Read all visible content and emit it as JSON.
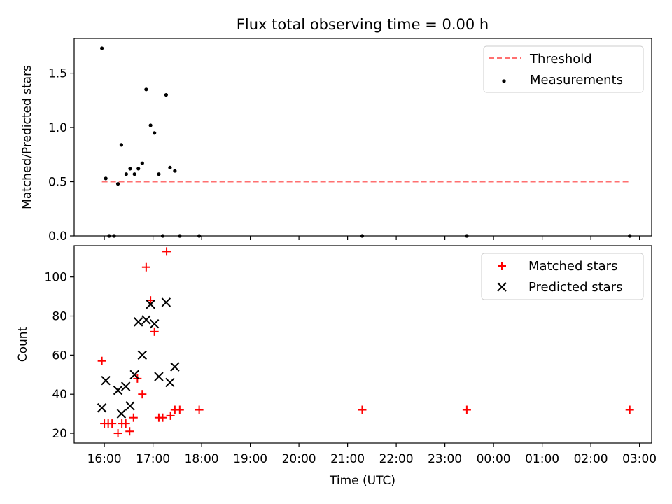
{
  "figure": {
    "title": "Flux total observing time = 0.00 h",
    "shared_xlabel": "Time (UTC)",
    "x_tick_labels": [
      "16:00",
      "17:00",
      "18:00",
      "19:00",
      "20:00",
      "21:00",
      "22:00",
      "23:00",
      "00:00",
      "01:00",
      "02:00",
      "03:00"
    ]
  },
  "chart_data": [
    {
      "type": "scatter",
      "title": "Flux total observing time = 0.00 h",
      "xlabel": "",
      "ylabel": "Matched/Predicted stars",
      "x_unit": "hours since 16:00 UTC",
      "xlim": [
        -0.62,
        11.25
      ],
      "ylim": [
        0,
        1.82
      ],
      "yticks": [
        0.0,
        0.5,
        1.0,
        1.5
      ],
      "ytick_labels": [
        "0.0",
        "0.5",
        "1.0",
        "1.5"
      ],
      "legend": {
        "location": "upper right",
        "entries": [
          "Threshold",
          "Measurements"
        ]
      },
      "grid": false,
      "threshold": {
        "name": "Threshold",
        "y": 0.5,
        "x_start": -0.05,
        "x_end": 10.8,
        "color": "#ff7070",
        "style": "dashed"
      },
      "series": [
        {
          "name": "Measurements",
          "marker": "dot",
          "color": "#000000",
          "points": [
            [
              -0.05,
              1.73
            ],
            [
              0.03,
              0.53
            ],
            [
              0.1,
              0.0
            ],
            [
              0.2,
              0.0
            ],
            [
              0.28,
              0.48
            ],
            [
              0.35,
              0.84
            ],
            [
              0.45,
              0.57
            ],
            [
              0.53,
              0.62
            ],
            [
              0.62,
              0.57
            ],
            [
              0.7,
              0.62
            ],
            [
              0.78,
              0.67
            ],
            [
              0.86,
              1.35
            ],
            [
              0.95,
              1.02
            ],
            [
              1.03,
              0.95
            ],
            [
              1.12,
              0.57
            ],
            [
              1.2,
              0.0
            ],
            [
              1.27,
              1.3
            ],
            [
              1.35,
              0.63
            ],
            [
              1.45,
              0.6
            ],
            [
              1.55,
              0.0
            ],
            [
              1.95,
              0.0
            ],
            [
              5.3,
              0.0
            ],
            [
              7.45,
              0.0
            ],
            [
              10.8,
              0.0
            ]
          ]
        }
      ]
    },
    {
      "type": "scatter",
      "xlabel": "Time (UTC)",
      "ylabel": "Count",
      "x_unit": "hours since 16:00 UTC",
      "xlim": [
        -0.62,
        11.25
      ],
      "ylim": [
        15,
        116
      ],
      "yticks": [
        20,
        40,
        60,
        80,
        100
      ],
      "ytick_labels": [
        "20",
        "40",
        "60",
        "80",
        "100"
      ],
      "legend": {
        "location": "upper right",
        "entries": [
          "Matched stars",
          "Predicted stars"
        ]
      },
      "grid": false,
      "series": [
        {
          "name": "Matched stars",
          "marker": "plus",
          "color": "#ff0000",
          "points": [
            [
              -0.05,
              57
            ],
            [
              0.0,
              25
            ],
            [
              0.08,
              25
            ],
            [
              0.16,
              25
            ],
            [
              0.28,
              20
            ],
            [
              0.36,
              25
            ],
            [
              0.44,
              25
            ],
            [
              0.52,
              21
            ],
            [
              0.6,
              28
            ],
            [
              0.68,
              48
            ],
            [
              0.78,
              40
            ],
            [
              0.86,
              105
            ],
            [
              0.95,
              88
            ],
            [
              1.03,
              72
            ],
            [
              1.12,
              28
            ],
            [
              1.2,
              28
            ],
            [
              1.28,
              113
            ],
            [
              1.36,
              29
            ],
            [
              1.45,
              32
            ],
            [
              1.55,
              32
            ],
            [
              1.95,
              32
            ],
            [
              5.3,
              32
            ],
            [
              7.45,
              32
            ],
            [
              10.8,
              32
            ]
          ]
        },
        {
          "name": "Predicted stars",
          "marker": "x",
          "color": "#000000",
          "points": [
            [
              -0.05,
              33
            ],
            [
              0.03,
              47
            ],
            [
              0.28,
              42
            ],
            [
              0.35,
              30
            ],
            [
              0.44,
              44
            ],
            [
              0.53,
              34
            ],
            [
              0.62,
              50
            ],
            [
              0.7,
              77
            ],
            [
              0.78,
              60
            ],
            [
              0.86,
              78
            ],
            [
              0.95,
              86
            ],
            [
              1.03,
              76
            ],
            [
              1.12,
              49
            ],
            [
              1.27,
              87
            ],
            [
              1.35,
              46
            ],
            [
              1.45,
              54
            ]
          ]
        }
      ]
    }
  ]
}
